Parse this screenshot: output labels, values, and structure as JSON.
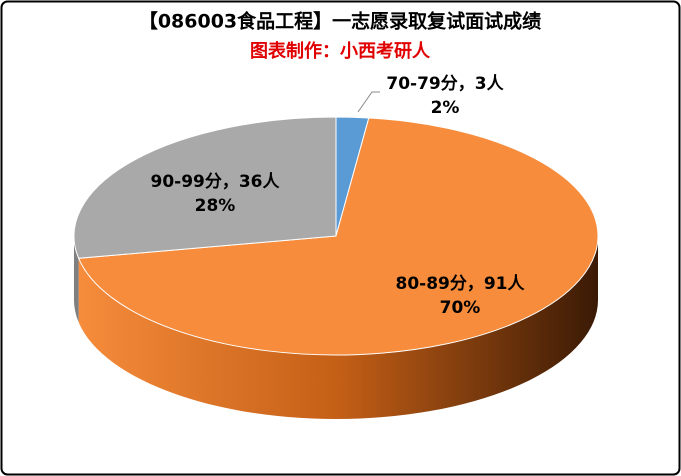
{
  "chart_data": {
    "type": "pie",
    "title": "【086003食品工程】一志愿录取复试面试成绩",
    "subtitle": "图表制作：小西考研人",
    "categories": [
      "70-79分，3人",
      "80-89分，91人",
      "90-99分，36人"
    ],
    "values": [
      2,
      70,
      28
    ],
    "value_labels": [
      "2%",
      "70%",
      "28%"
    ],
    "colors": [
      "#5b9bd5",
      "#f68c3c",
      "#a9a9a9"
    ],
    "side_colors": [
      "#3a78b5",
      "#c0601a",
      "#7f7f7f"
    ]
  }
}
